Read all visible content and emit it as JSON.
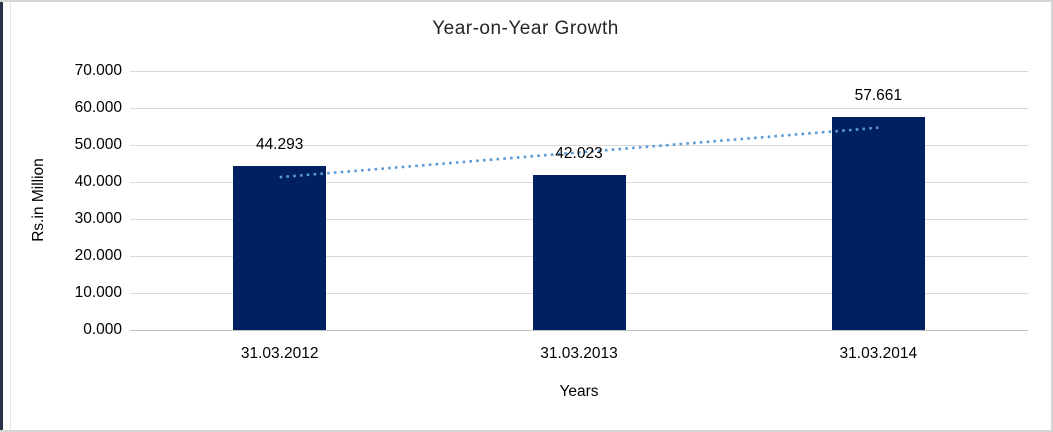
{
  "frame": {
    "left_band_color": "#2A3248",
    "border_color": "#D6D6D6",
    "background_color": "#FFFFFF"
  },
  "chart_data": {
    "type": "bar",
    "title": "Year-on-Year Growth",
    "xlabel": "Years",
    "ylabel": "Rs.in Million",
    "categories": [
      "31.03.2012",
      "31.03.2013",
      "31.03.2014"
    ],
    "values": [
      44.293,
      42.023,
      57.661
    ],
    "data_labels": [
      "44.293",
      "42.023",
      "57.661"
    ],
    "ylim": [
      0,
      70
    ],
    "ytick_step": 10,
    "ytick_labels": [
      "0.000",
      "10.000",
      "20.000",
      "30.000",
      "40.000",
      "50.000",
      "60.000",
      "70.000"
    ],
    "grid": true,
    "legend": "none",
    "bar_color": "#002060",
    "gridline_color": "#D9D9D9",
    "trendline": {
      "type": "linear",
      "style": "dotted",
      "color": "#5B9BD5",
      "start_value": 41.31,
      "end_value": 54.68
    }
  }
}
